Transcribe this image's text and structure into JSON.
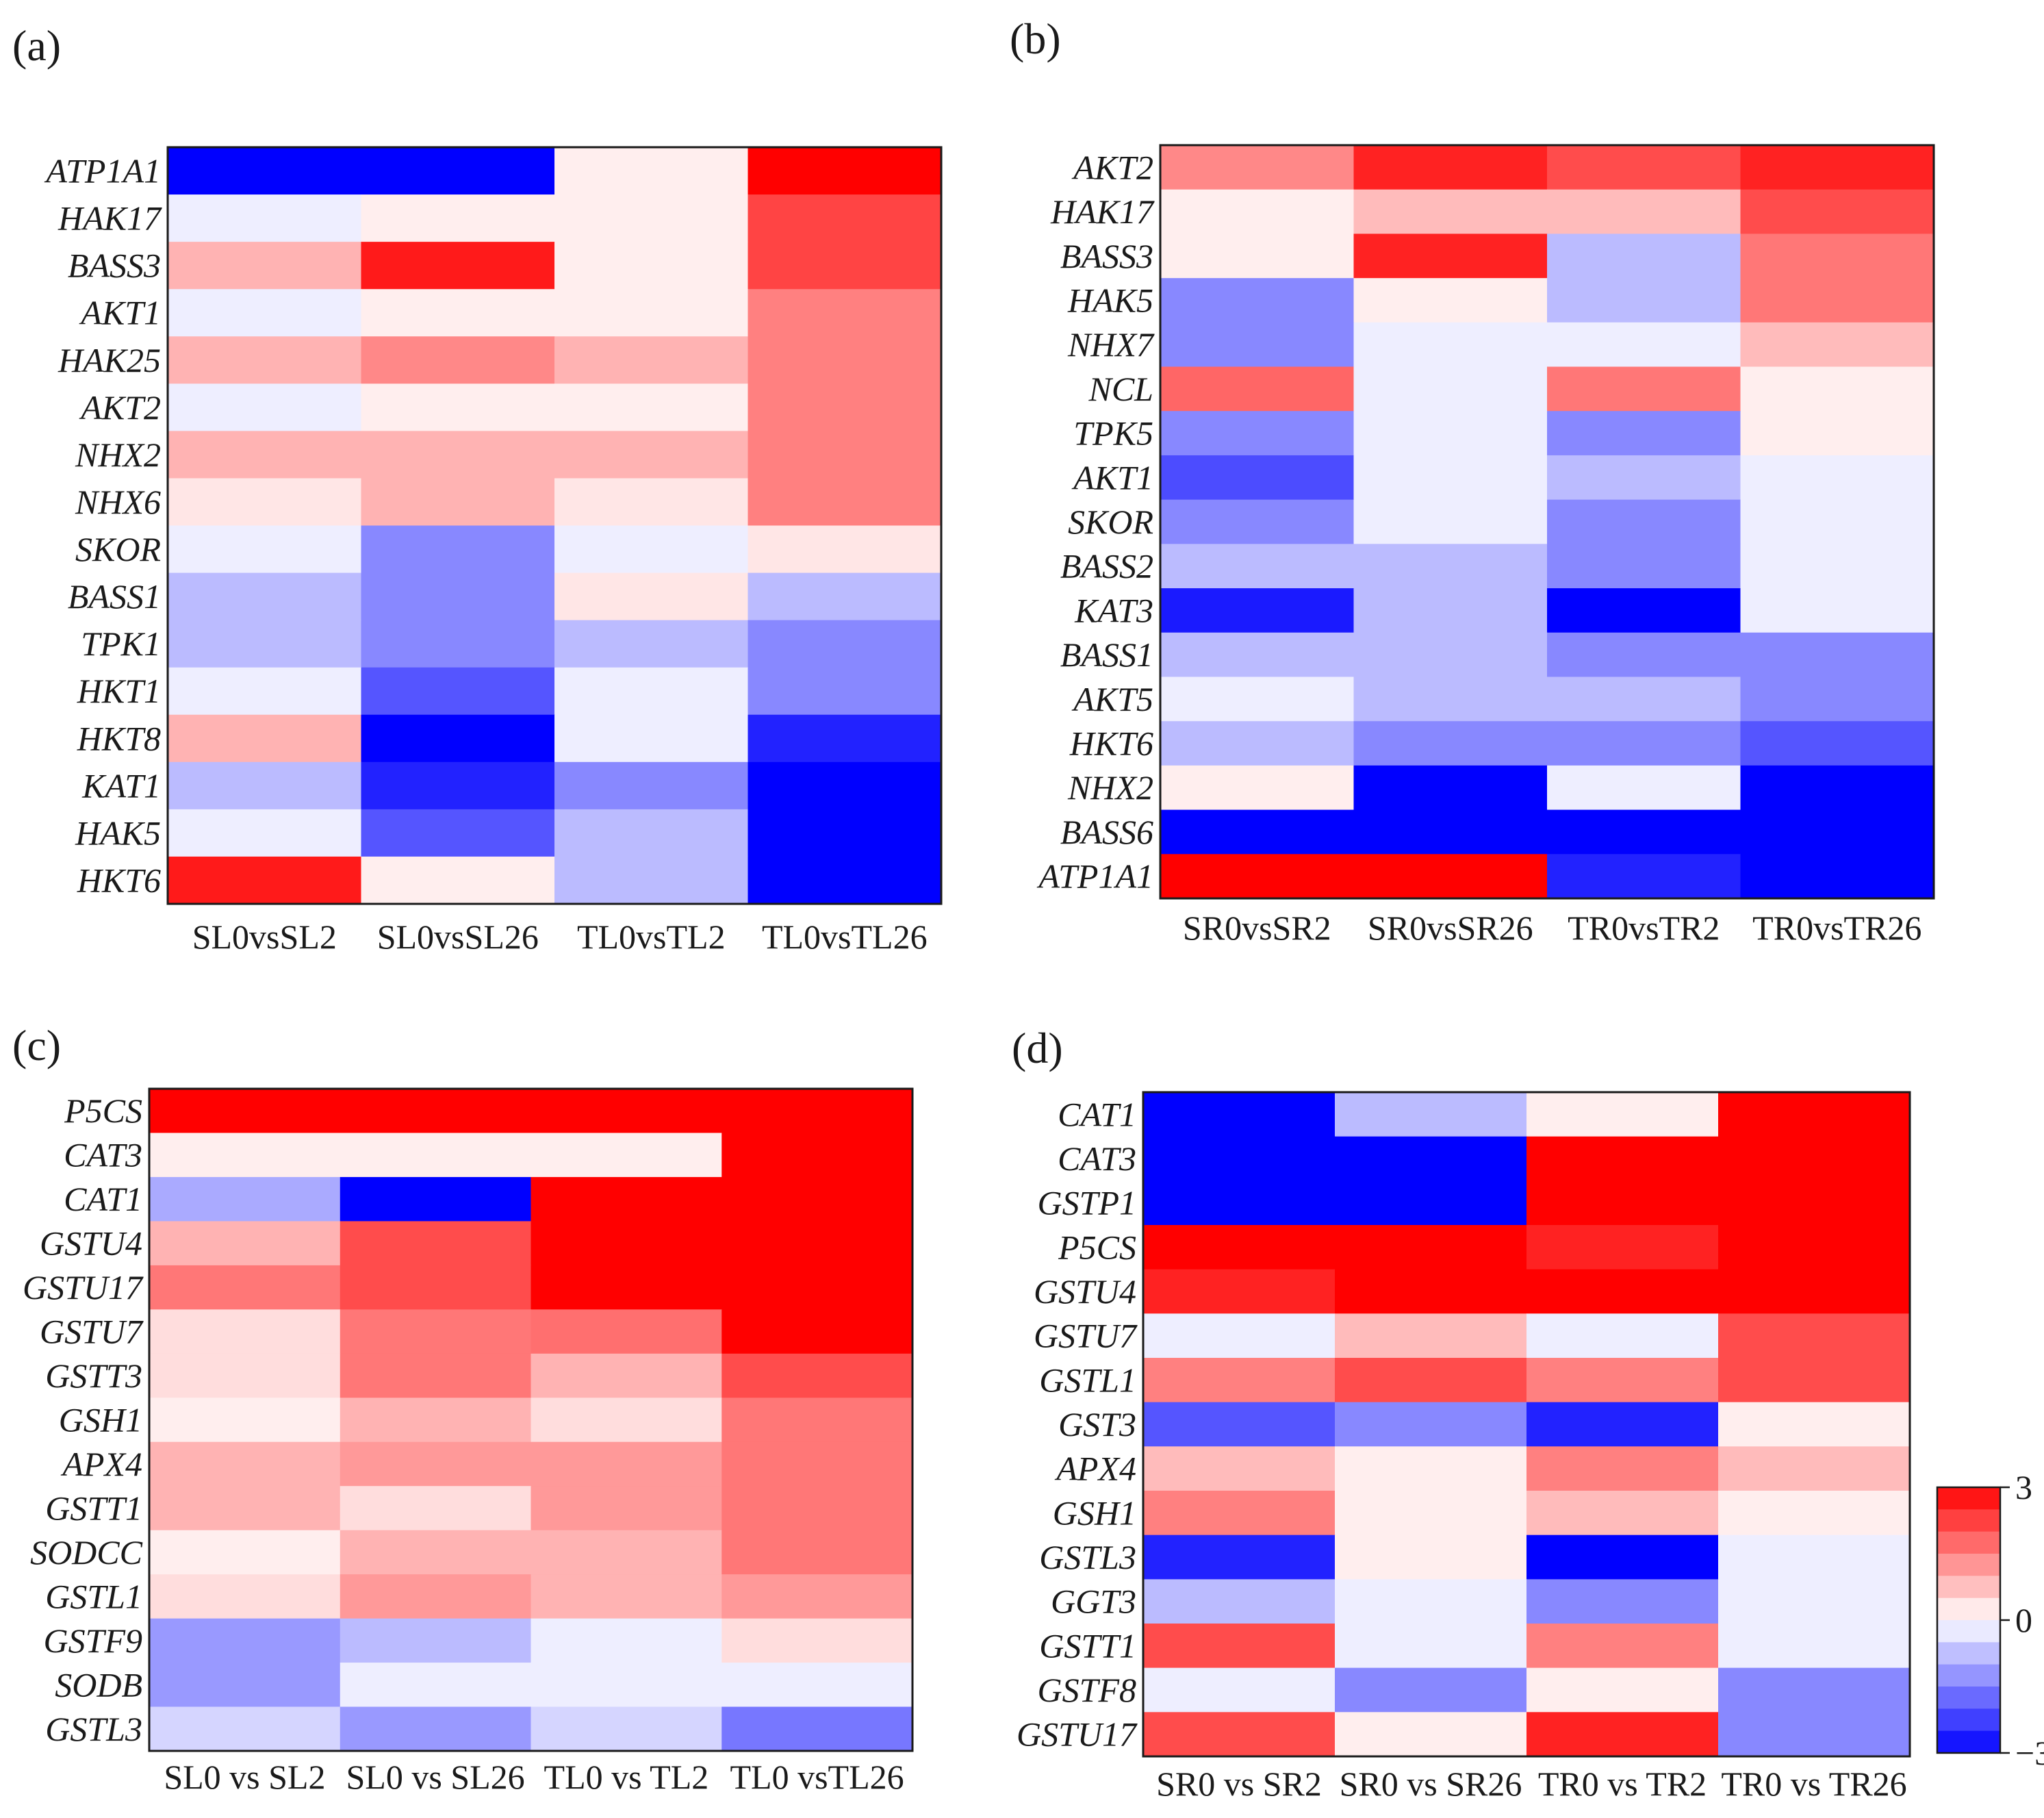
{
  "figure": {
    "colorscale": {
      "min": -3,
      "max": 3,
      "ticks": [
        3,
        0,
        -3
      ],
      "tick_labels": [
        "3",
        "0",
        "−3"
      ],
      "colors": {
        "low": "#0000ff",
        "mid": "#ffffff",
        "high": "#ff0000"
      }
    }
  },
  "chart_data": [
    {
      "type": "heatmap",
      "panel": "(a)",
      "rows": [
        "ATP1A1",
        "HAK17",
        "BASS3",
        "AKT1",
        "HAK25",
        "AKT2",
        "NHX2",
        "NHX6",
        "SKOR",
        "BASS1",
        "TPK1",
        "HKT1",
        "HKT8",
        "KAT1",
        "HAK5",
        "HKT6"
      ],
      "columns": [
        "SL0vsSL2",
        "SL0vsSL26",
        "TL0vsTL2",
        "TL0vsTL26"
      ],
      "values": [
        [
          -3.0,
          -3.0,
          0.2,
          3.0
        ],
        [
          -0.2,
          0.2,
          0.2,
          2.2
        ],
        [
          0.9,
          2.7,
          0.2,
          2.2
        ],
        [
          -0.2,
          0.2,
          0.2,
          1.5
        ],
        [
          0.9,
          1.4,
          0.9,
          1.5
        ],
        [
          -0.2,
          0.2,
          0.2,
          1.5
        ],
        [
          0.9,
          0.9,
          0.9,
          1.5
        ],
        [
          0.3,
          0.9,
          0.3,
          1.5
        ],
        [
          -0.2,
          -1.4,
          -0.2,
          0.3
        ],
        [
          -0.8,
          -1.4,
          0.3,
          -0.8
        ],
        [
          -0.8,
          -1.4,
          -0.8,
          -1.4
        ],
        [
          -0.2,
          -2.0,
          -0.2,
          -1.4
        ],
        [
          0.9,
          -3.0,
          -0.2,
          -2.6
        ],
        [
          -0.8,
          -2.6,
          -1.4,
          -3.0
        ],
        [
          -0.2,
          -2.0,
          -0.8,
          -3.0
        ],
        [
          2.7,
          0.2,
          -0.8,
          -3.0
        ]
      ]
    },
    {
      "type": "heatmap",
      "panel": "(b)",
      "rows": [
        "AKT2",
        "HAK17",
        "BASS3",
        "HAK5",
        "NHX7",
        "NCL",
        "TPK5",
        "AKT1",
        "SKOR",
        "BASS2",
        "KAT3",
        "BASS1",
        "AKT5",
        "HKT6",
        "NHX2",
        "BASS6",
        "ATP1A1"
      ],
      "columns": [
        "SR0vsSR2",
        "SR0vsSR26",
        "TR0vsTR2",
        "TR0vsTR26"
      ],
      "values": [
        [
          1.4,
          2.6,
          2.1,
          2.6
        ],
        [
          0.2,
          0.8,
          0.8,
          2.1
        ],
        [
          0.2,
          2.6,
          -0.8,
          1.6
        ],
        [
          -1.4,
          0.2,
          -0.8,
          1.6
        ],
        [
          -1.4,
          -0.2,
          -0.2,
          0.8
        ],
        [
          1.8,
          -0.2,
          1.6,
          0.2
        ],
        [
          -1.4,
          -0.2,
          -1.4,
          0.2
        ],
        [
          -2.1,
          -0.2,
          -0.8,
          -0.2
        ],
        [
          -1.4,
          -0.2,
          -1.4,
          -0.2
        ],
        [
          -0.8,
          -0.8,
          -1.4,
          -0.2
        ],
        [
          -2.7,
          -0.8,
          -3.0,
          -0.2
        ],
        [
          -0.8,
          -0.8,
          -1.4,
          -1.4
        ],
        [
          -0.2,
          -0.8,
          -0.8,
          -1.4
        ],
        [
          -0.8,
          -1.4,
          -1.4,
          -2.0
        ],
        [
          0.2,
          -3.0,
          -0.2,
          -3.0
        ],
        [
          -3.0,
          -3.0,
          -3.0,
          -3.0
        ],
        [
          3.0,
          3.0,
          -2.6,
          -3.0
        ]
      ]
    },
    {
      "type": "heatmap",
      "panel": "(c)",
      "rows": [
        "P5CS",
        "CAT3",
        "CAT1",
        "GSTU4",
        "GSTU17",
        "GSTU7",
        "GSTT3",
        "GSH1",
        "APX4",
        "GSTT1",
        "SODCC",
        "GSTL1",
        "GSTF9",
        "SODB",
        "GSTL3"
      ],
      "columns": [
        "SL0 vs SL2",
        "SL0 vs SL26",
        "TL0 vs TL2",
        "TL0 vsTL26"
      ],
      "values": [
        [
          3.0,
          3.0,
          3.0,
          3.0
        ],
        [
          0.2,
          0.2,
          0.2,
          3.0
        ],
        [
          -1.0,
          -3.0,
          3.0,
          3.0
        ],
        [
          0.9,
          2.1,
          3.0,
          3.0
        ],
        [
          1.6,
          2.1,
          3.0,
          3.0
        ],
        [
          0.4,
          1.6,
          1.7,
          3.0
        ],
        [
          0.4,
          1.6,
          0.9,
          2.1
        ],
        [
          0.2,
          0.9,
          0.4,
          1.6
        ],
        [
          0.9,
          1.2,
          1.2,
          1.6
        ],
        [
          0.9,
          0.4,
          1.2,
          1.6
        ],
        [
          0.2,
          0.9,
          0.9,
          1.6
        ],
        [
          0.4,
          1.2,
          0.9,
          1.2
        ],
        [
          -1.2,
          -0.8,
          -0.2,
          0.4
        ],
        [
          -1.2,
          -0.2,
          -0.2,
          -0.2
        ],
        [
          -0.5,
          -1.2,
          -0.5,
          -1.6
        ]
      ]
    },
    {
      "type": "heatmap",
      "panel": "(d)",
      "rows": [
        "CAT1",
        "CAT3",
        "GSTP1",
        "P5CS",
        "GSTU4",
        "GSTU7",
        "GSTL1",
        "GST3",
        "APX4",
        "GSH1",
        "GSTL3",
        "GGT3",
        "GSTT1",
        "GSTF8",
        "GSTU17"
      ],
      "columns": [
        "SR0 vs SR2",
        "SR0 vs SR26",
        "TR0 vs TR2",
        "TR0 vs TR26"
      ],
      "values": [
        [
          -3.0,
          -0.8,
          0.2,
          3.0
        ],
        [
          -3.0,
          -3.0,
          3.0,
          3.0
        ],
        [
          -3.0,
          -3.0,
          3.0,
          3.0
        ],
        [
          3.0,
          3.0,
          2.6,
          3.0
        ],
        [
          2.6,
          3.0,
          3.0,
          3.0
        ],
        [
          -0.2,
          0.8,
          -0.2,
          2.1
        ],
        [
          1.5,
          2.1,
          1.5,
          2.1
        ],
        [
          -2.0,
          -1.4,
          -2.6,
          0.2
        ],
        [
          0.8,
          0.2,
          1.5,
          0.8
        ],
        [
          1.5,
          0.2,
          0.8,
          0.2
        ],
        [
          -2.6,
          0.2,
          -3.0,
          -0.2
        ],
        [
          -0.8,
          -0.2,
          -1.4,
          -0.2
        ],
        [
          2.1,
          -0.2,
          1.5,
          -0.2
        ],
        [
          -0.2,
          -1.4,
          0.2,
          -1.4
        ],
        [
          2.1,
          0.2,
          2.6,
          -1.4
        ]
      ]
    }
  ]
}
